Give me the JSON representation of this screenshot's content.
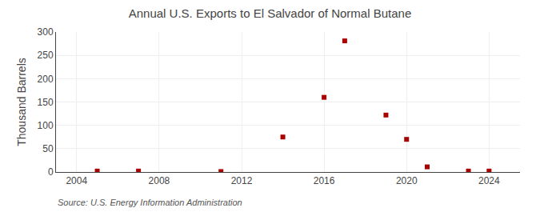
{
  "chart_data": {
    "type": "scatter",
    "title": "Annual U.S. Exports to El Salvador of Normal Butane",
    "ylabel": "Thousand Barrels",
    "annotations": [
      "Source: U.S. Energy Information Administration"
    ],
    "x": [
      2005,
      2007,
      2011,
      2014,
      2016,
      2017,
      2019,
      2020,
      2021,
      2023,
      2024
    ],
    "values": [
      2,
      2,
      1,
      75,
      160,
      281,
      122,
      70,
      11,
      2,
      2
    ],
    "color": "#aa0000",
    "marker": "square",
    "xlim": [
      2003,
      2025.5
    ],
    "ylim": [
      0,
      300
    ],
    "xticks": [
      2004,
      2008,
      2012,
      2016,
      2020,
      2024
    ],
    "yticks": [
      0,
      50,
      100,
      150,
      200,
      250,
      300
    ],
    "grid": true
  }
}
